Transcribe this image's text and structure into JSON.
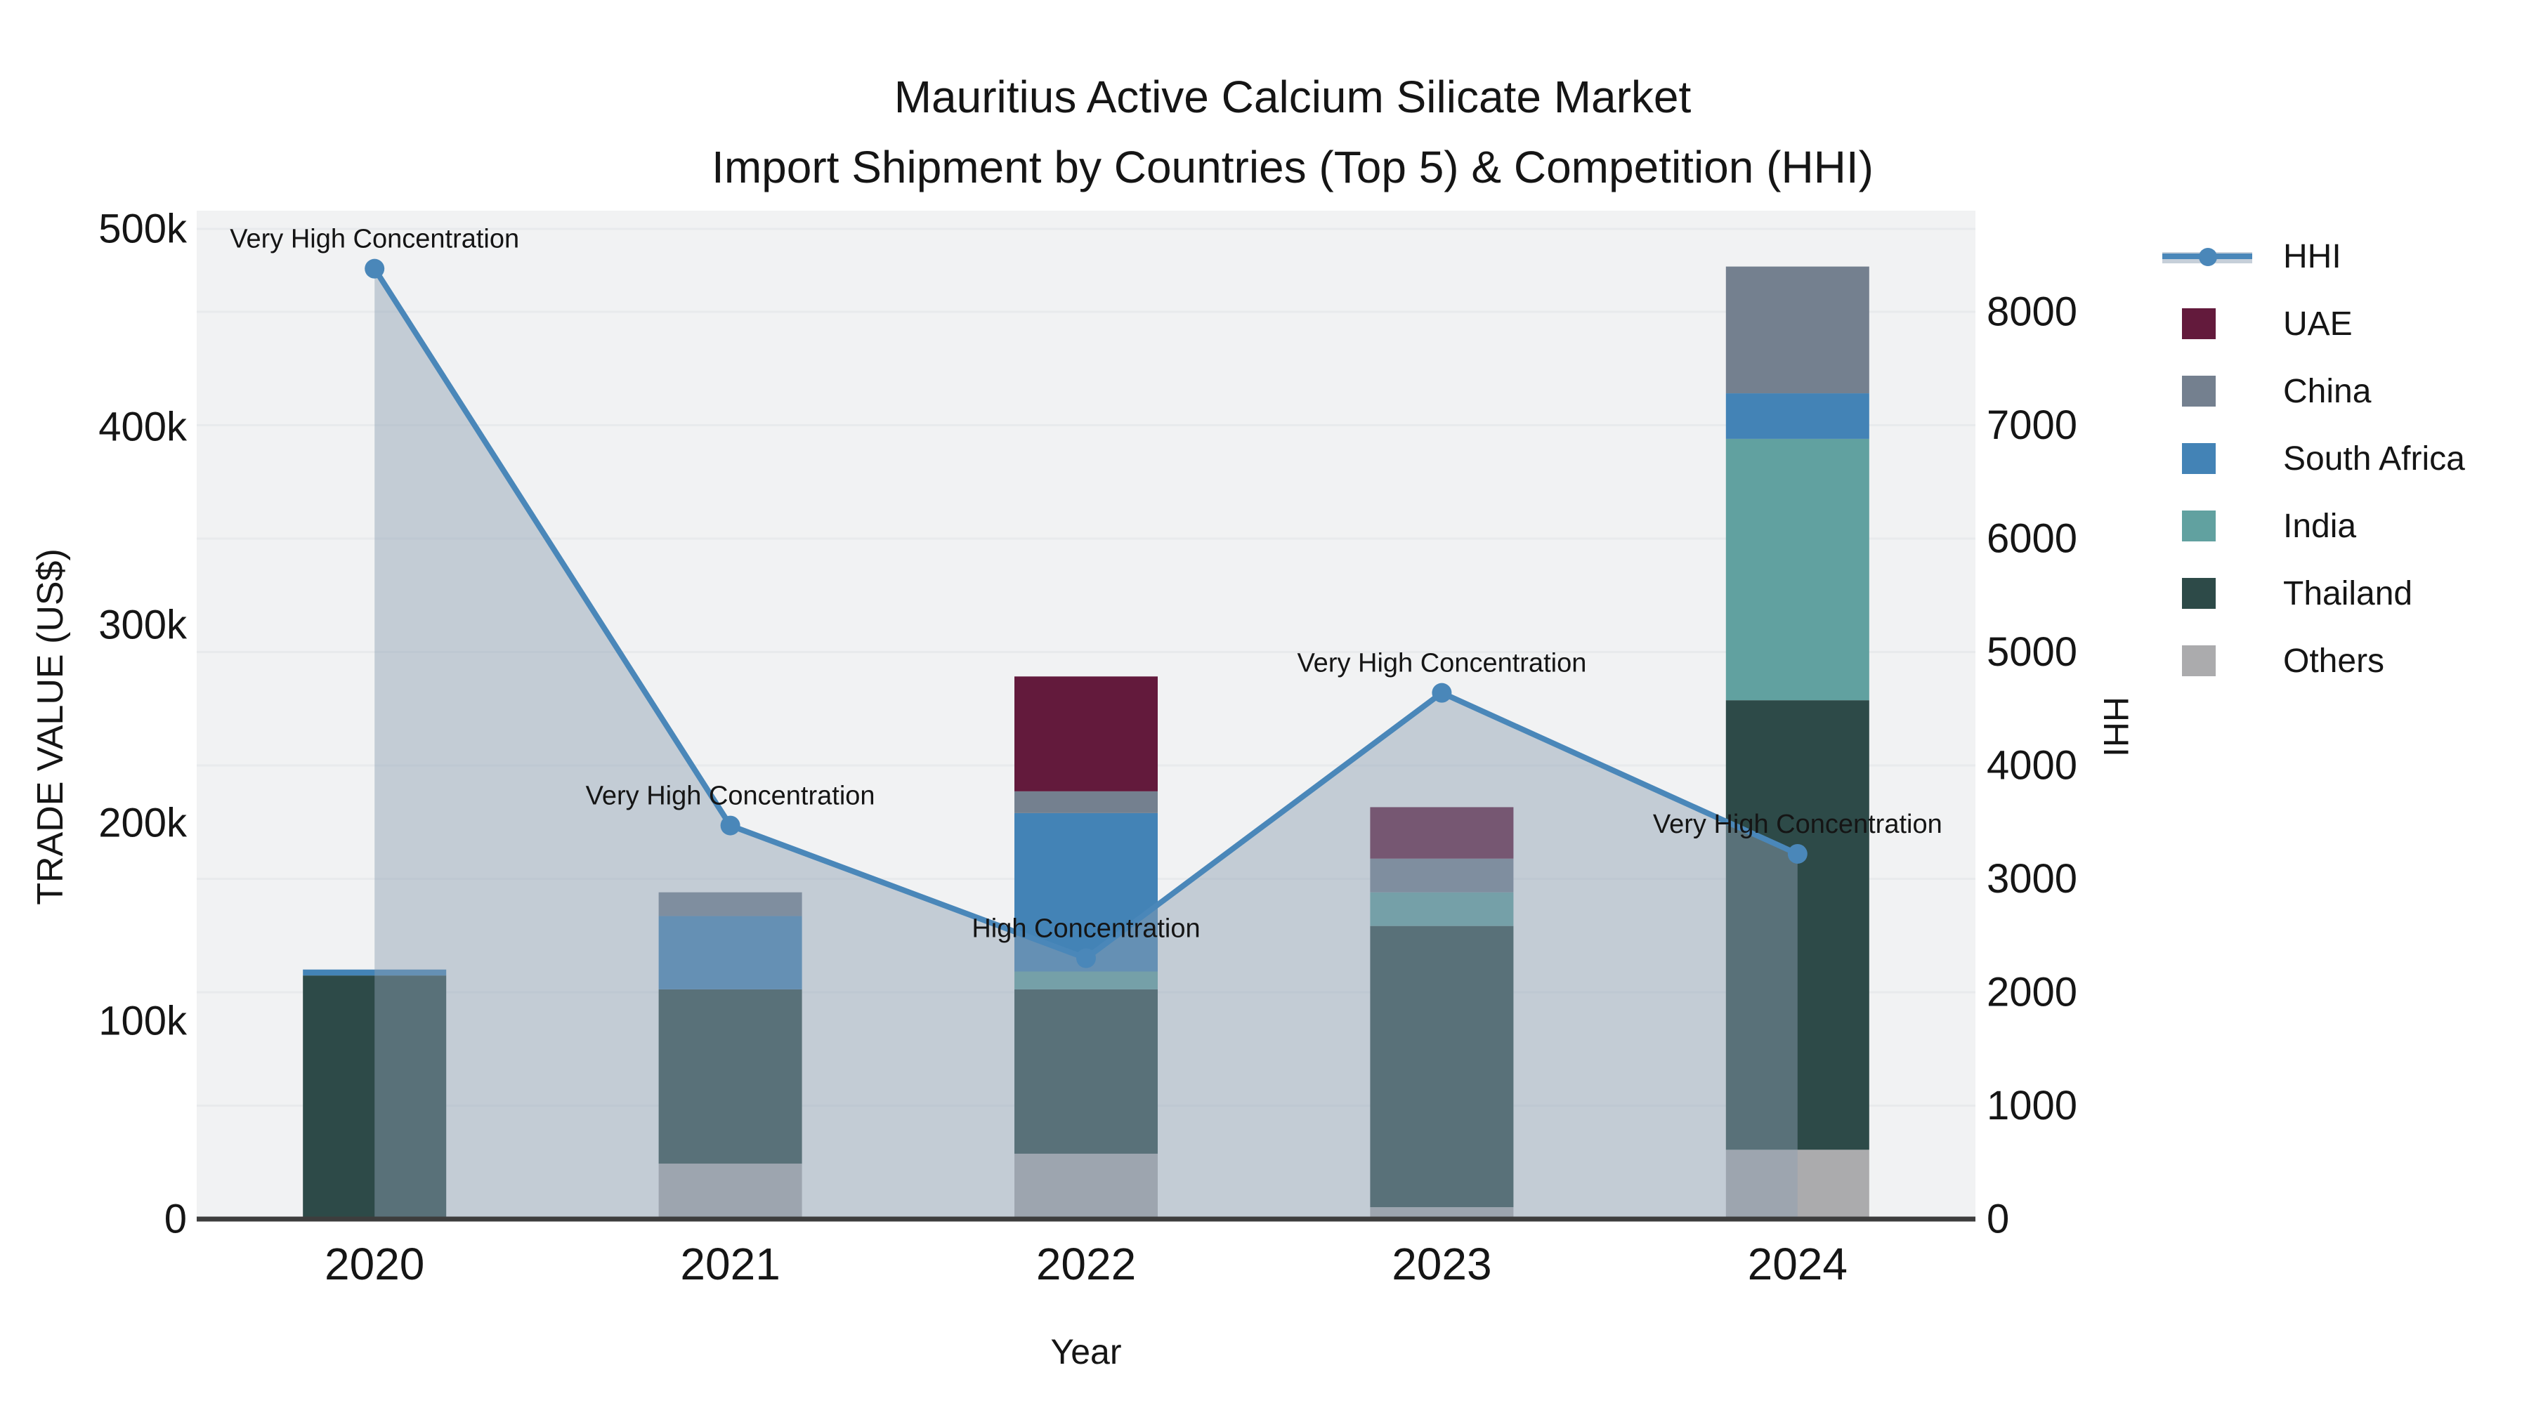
{
  "accent_colors": {
    "hhi_line": "#4a87b9",
    "hhi_area_fill": "#8da0b3",
    "plot_background": "#f1f2f3",
    "gridline": "#e8eaec",
    "axis_line": "#3d3d3d",
    "text": "#151515"
  },
  "chart_data": {
    "type": "combo-stacked-bar-line",
    "title_line1": "Mauritius Active Calcium Silicate Market",
    "title_line2": "Import Shipment by Countries (Top 5) & Competition (HHI)",
    "xlabel": "Year",
    "categories": [
      "2020",
      "2021",
      "2022",
      "2023",
      "2024"
    ],
    "left_axis": {
      "label": "TRADE VALUE (US$)",
      "ticks": [
        {
          "label": "0",
          "value": 0
        },
        {
          "label": "100k",
          "value": 100000
        },
        {
          "label": "200k",
          "value": 200000
        },
        {
          "label": "300k",
          "value": 300000
        },
        {
          "label": "400k",
          "value": 400000
        },
        {
          "label": "500k",
          "value": 500000
        }
      ],
      "range": [
        0,
        500000
      ]
    },
    "right_axis": {
      "label": "HHI",
      "ticks": [
        {
          "label": "0",
          "value": 0
        },
        {
          "label": "1000",
          "value": 1000
        },
        {
          "label": "2000",
          "value": 2000
        },
        {
          "label": "3000",
          "value": 3000
        },
        {
          "label": "4000",
          "value": 4000
        },
        {
          "label": "5000",
          "value": 5000
        },
        {
          "label": "6000",
          "value": 6000
        },
        {
          "label": "7000",
          "value": 7000
        },
        {
          "label": "8000",
          "value": 8000
        }
      ],
      "range": [
        0,
        8000
      ]
    },
    "bar_series_bottom_to_top": [
      {
        "name": "Others",
        "color": "#ababad",
        "values": [
          0,
          28000,
          33000,
          6000,
          35000
        ]
      },
      {
        "name": "Thailand",
        "color": "#2d4a48",
        "values": [
          123000,
          88000,
          83000,
          142000,
          227000
        ]
      },
      {
        "name": "India",
        "color": "#61a1a0",
        "values": [
          0,
          0,
          9000,
          17000,
          132000
        ]
      },
      {
        "name": "South Africa",
        "color": "#4383b6",
        "values": [
          3000,
          37000,
          80000,
          0,
          23000
        ]
      },
      {
        "name": "China",
        "color": "#74808f",
        "values": [
          0,
          12000,
          11000,
          17000,
          64000
        ]
      },
      {
        "name": "UAE",
        "color": "#631a3c",
        "values": [
          0,
          0,
          58000,
          26000,
          0
        ]
      }
    ],
    "line_series": {
      "name": "HHI",
      "color": "#4a87b9",
      "area_fill": "#8da0b3",
      "values": [
        8380,
        3470,
        2300,
        4640,
        3220
      ]
    },
    "annotations": [
      "Very High Concentration",
      "Very High Concentration",
      "High Concentration",
      "Very High Concentration",
      "Very High Concentration"
    ],
    "legend_order": [
      "HHI",
      "UAE",
      "China",
      "South Africa",
      "India",
      "Thailand",
      "Others"
    ]
  }
}
